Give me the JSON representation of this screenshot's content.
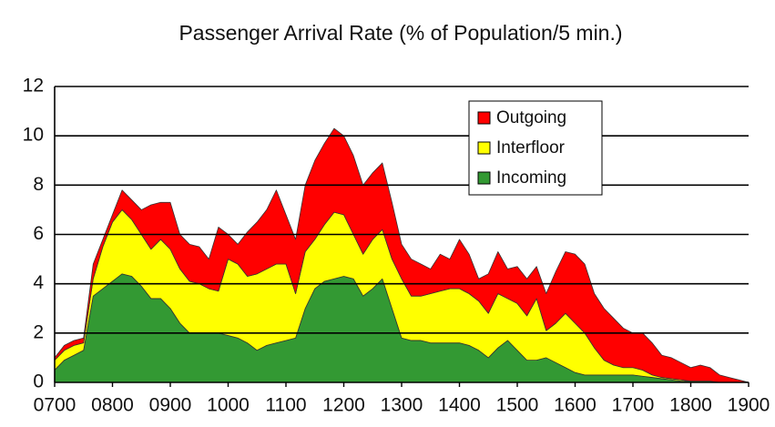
{
  "chart_data": {
    "type": "stacked_area",
    "title": "Passenger Arrival Rate (% of Population/5 min.)",
    "x": [
      420,
      430,
      440,
      450,
      460,
      470,
      480,
      490,
      500,
      510,
      520,
      530,
      540,
      550,
      560,
      570,
      580,
      590,
      600,
      610,
      620,
      630,
      640,
      650,
      660,
      670,
      680,
      690,
      700,
      710,
      720,
      730,
      740,
      750,
      760,
      770,
      780,
      790,
      800,
      810,
      820,
      830,
      840,
      850,
      860,
      870,
      880,
      890,
      900,
      910,
      920,
      930,
      940,
      950,
      960,
      970,
      980,
      990,
      1000,
      1010,
      1020,
      1030,
      1040,
      1050,
      1060,
      1070,
      1080,
      1090,
      1100,
      1110,
      1120,
      1130,
      1140
    ],
    "series": [
      {
        "name": "Incoming",
        "color": "#339933",
        "values": [
          0.5,
          0.9,
          1.1,
          1.3,
          3.5,
          3.8,
          4.1,
          4.4,
          4.3,
          3.9,
          3.4,
          3.4,
          3.0,
          2.4,
          2.0,
          2.0,
          2.0,
          2.0,
          1.9,
          1.8,
          1.6,
          1.3,
          1.5,
          1.6,
          1.7,
          1.8,
          3.0,
          3.8,
          4.1,
          4.2,
          4.3,
          4.2,
          3.5,
          3.8,
          4.2,
          3.0,
          1.8,
          1.7,
          1.7,
          1.6,
          1.6,
          1.6,
          1.6,
          1.5,
          1.3,
          1.0,
          1.4,
          1.7,
          1.3,
          0.9,
          0.9,
          1.0,
          0.8,
          0.6,
          0.4,
          0.3,
          0.3,
          0.3,
          0.3,
          0.3,
          0.3,
          0.25,
          0.2,
          0.15,
          0.1,
          0.05,
          0.05,
          0.05,
          0.05,
          0,
          0,
          0,
          0
        ]
      },
      {
        "name": "Interfloor",
        "color": "#ffff00",
        "values": [
          0.4,
          0.4,
          0.4,
          0.3,
          0.7,
          1.7,
          2.4,
          2.6,
          2.3,
          2.1,
          2.0,
          2.4,
          2.4,
          2.2,
          2.1,
          2.0,
          1.8,
          1.7,
          3.1,
          3.0,
          2.7,
          3.1,
          3.1,
          3.2,
          3.1,
          1.8,
          2.3,
          2.0,
          2.3,
          2.7,
          2.5,
          1.8,
          1.7,
          2.0,
          2.0,
          2.0,
          2.4,
          1.8,
          1.8,
          2.0,
          2.1,
          2.2,
          2.2,
          2.1,
          2.0,
          1.8,
          2.2,
          1.7,
          1.9,
          1.8,
          2.5,
          1.1,
          1.6,
          2.2,
          2.0,
          1.7,
          1.1,
          0.6,
          0.4,
          0.3,
          0.3,
          0.25,
          0.1,
          0.05,
          0.05,
          0.05,
          0,
          0,
          0,
          0,
          0,
          0,
          0
        ]
      },
      {
        "name": "Outgoing",
        "color": "#ff0000",
        "values": [
          0.1,
          0.2,
          0.2,
          0.2,
          0.6,
          0.3,
          0.3,
          0.8,
          0.8,
          1.0,
          1.8,
          1.5,
          1.9,
          1.4,
          1.5,
          1.5,
          1.2,
          2.6,
          1.0,
          0.8,
          1.8,
          2.1,
          2.4,
          3.0,
          2.0,
          2.2,
          2.7,
          3.2,
          3.3,
          3.4,
          3.2,
          3.2,
          2.8,
          2.7,
          2.7,
          2.3,
          1.4,
          1.5,
          1.3,
          1.0,
          1.5,
          1.2,
          2.0,
          1.6,
          0.9,
          1.6,
          1.7,
          1.2,
          1.5,
          1.5,
          1.3,
          1.5,
          2.1,
          2.5,
          2.8,
          2.8,
          2.2,
          2.1,
          1.9,
          1.6,
          1.4,
          1.5,
          1.3,
          0.9,
          0.85,
          0.7,
          0.55,
          0.65,
          0.55,
          0.3,
          0.2,
          0.1,
          0
        ]
      }
    ],
    "xlim": [
      420,
      1140
    ],
    "xticks": [
      {
        "value": 420,
        "label": "0700"
      },
      {
        "value": 480,
        "label": "0800"
      },
      {
        "value": 540,
        "label": "0900"
      },
      {
        "value": 600,
        "label": "1000"
      },
      {
        "value": 660,
        "label": "1100"
      },
      {
        "value": 720,
        "label": "1200"
      },
      {
        "value": 780,
        "label": "1300"
      },
      {
        "value": 840,
        "label": "1400"
      },
      {
        "value": 900,
        "label": "1500"
      },
      {
        "value": 960,
        "label": "1600"
      },
      {
        "value": 1020,
        "label": "1700"
      },
      {
        "value": 1080,
        "label": "1800"
      },
      {
        "value": 1140,
        "label": "1900"
      }
    ],
    "ylim": [
      0,
      12
    ],
    "yticks": [
      0,
      2,
      4,
      6,
      8,
      10,
      12
    ],
    "grid": true,
    "legend": "upper right"
  }
}
